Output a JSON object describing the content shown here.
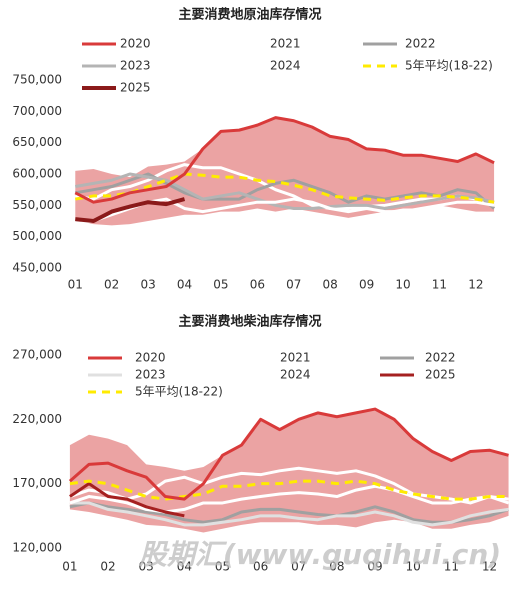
{
  "chart_data": [
    {
      "type": "line",
      "title": "主要消费地原油库存情况",
      "x": [
        1,
        1.5,
        2,
        2.5,
        3,
        3.5,
        4,
        4.5,
        5,
        5.5,
        6,
        6.5,
        7,
        7.5,
        8,
        8.5,
        9,
        9.5,
        10,
        10.5,
        11,
        11.5,
        12,
        12.5
      ],
      "xlim": [
        0.8,
        12.8
      ],
      "xticks": [
        {
          "value": 1,
          "label": "01"
        },
        {
          "value": 2,
          "label": "02"
        },
        {
          "value": 3,
          "label": "03"
        },
        {
          "value": 4,
          "label": "04"
        },
        {
          "value": 5,
          "label": "05"
        },
        {
          "value": 6,
          "label": "06"
        },
        {
          "value": 7,
          "label": "07"
        },
        {
          "value": 8,
          "label": "08"
        },
        {
          "value": 9,
          "label": "09"
        },
        {
          "value": 10,
          "label": "10"
        },
        {
          "value": 11,
          "label": "11"
        },
        {
          "value": 12,
          "label": "12"
        }
      ],
      "ylim": [
        450000,
        750000
      ],
      "yticks": [
        {
          "value": 450000,
          "label": "450,000"
        },
        {
          "value": 500000,
          "label": "500,000"
        },
        {
          "value": 550000,
          "label": "550,000"
        },
        {
          "value": 600000,
          "label": "600,000"
        },
        {
          "value": 650000,
          "label": "650,000"
        },
        {
          "value": 700000,
          "label": "700,000"
        },
        {
          "value": 750000,
          "label": "750,000"
        }
      ],
      "band": {
        "color": "#eba3a3",
        "upper": [
          605000,
          608000,
          600000,
          595000,
          612000,
          615000,
          620000,
          640000,
          668000,
          670000,
          678000,
          690000,
          685000,
          675000,
          660000,
          655000,
          640000,
          638000,
          630000,
          630000,
          625000,
          620000,
          632000,
          618000
        ],
        "lower": [
          525000,
          520000,
          518000,
          520000,
          525000,
          530000,
          535000,
          535000,
          540000,
          540000,
          545000,
          540000,
          545000,
          540000,
          535000,
          530000,
          535000,
          540000,
          545000,
          545000,
          550000,
          545000,
          540000,
          540000
        ]
      },
      "series": [
        {
          "name": "2020",
          "color": "#d93a3a",
          "line_width": 3,
          "values": [
            570000,
            555000,
            560000,
            570000,
            575000,
            580000,
            600000,
            640000,
            668000,
            670000,
            678000,
            690000,
            685000,
            675000,
            660000,
            655000,
            640000,
            638000,
            630000,
            630000,
            625000,
            620000,
            632000,
            618000
          ]
        },
        {
          "name": "2021",
          "color": "#ffffff",
          "line_width": 3,
          "values": [
            565000,
            560000,
            575000,
            580000,
            590000,
            605000,
            615000,
            610000,
            610000,
            600000,
            590000,
            575000,
            565000,
            550000,
            545000,
            545000,
            548000,
            550000,
            555000,
            560000,
            560000,
            565000,
            560000,
            555000
          ]
        },
        {
          "name": "2022",
          "color": "#a0a0a0",
          "line_width": 3,
          "values": [
            570000,
            575000,
            580000,
            590000,
            600000,
            585000,
            570000,
            560000,
            560000,
            560000,
            575000,
            585000,
            590000,
            580000,
            570000,
            555000,
            565000,
            560000,
            565000,
            570000,
            565000,
            575000,
            570000,
            545000
          ]
        },
        {
          "name": "2023",
          "color": "#b4b4b4",
          "line_width": 3,
          "values": [
            580000,
            585000,
            590000,
            600000,
            595000,
            590000,
            575000,
            560000,
            565000,
            570000,
            560000,
            550000,
            545000,
            545000,
            548000,
            550000,
            550000,
            545000,
            550000,
            555000,
            560000,
            565000,
            562000,
            555000
          ]
        },
        {
          "name": "2024",
          "color": "#ffffff",
          "line_width": 3,
          "values": [
            520000,
            525000,
            535000,
            545000,
            555000,
            560000,
            545000,
            540000,
            545000,
            550000,
            555000,
            555000,
            560000,
            555000,
            545000,
            540000,
            545000,
            540000,
            540000,
            545000,
            550000,
            555000,
            555000,
            550000
          ]
        },
        {
          "name": "5年平均(18-22)",
          "color": "#ffeb00",
          "line_width": 3,
          "dashed": true,
          "values": [
            560000,
            565000,
            565000,
            570000,
            580000,
            590000,
            600000,
            598000,
            595000,
            595000,
            590000,
            588000,
            582000,
            575000,
            565000,
            562000,
            560000,
            558000,
            562000,
            565000,
            565000,
            563000,
            560000,
            555000
          ]
        },
        {
          "name": "2025",
          "color": "#8b1a1a",
          "line_width": 4,
          "values": [
            528000,
            525000,
            540000,
            548000,
            555000,
            552000,
            560000,
            null,
            null,
            null,
            null,
            null,
            null,
            null,
            null,
            null,
            null,
            null,
            null,
            null,
            null,
            null,
            null,
            null
          ]
        }
      ]
    },
    {
      "type": "line",
      "title": "主要消费地柴油库存情况",
      "x": [
        1,
        1.5,
        2,
        2.5,
        3,
        3.5,
        4,
        4.5,
        5,
        5.5,
        6,
        6.5,
        7,
        7.5,
        8,
        8.5,
        9,
        9.5,
        10,
        10.5,
        11,
        11.5,
        12,
        12.5
      ],
      "xlim": [
        0.95,
        12.8
      ],
      "xticks": [
        {
          "value": 1,
          "label": "01"
        },
        {
          "value": 2,
          "label": "02"
        },
        {
          "value": 3,
          "label": "03"
        },
        {
          "value": 4,
          "label": "04"
        },
        {
          "value": 5,
          "label": "05"
        },
        {
          "value": 6,
          "label": "06"
        },
        {
          "value": 7,
          "label": "07"
        },
        {
          "value": 8,
          "label": "08"
        },
        {
          "value": 9,
          "label": "09"
        },
        {
          "value": 10,
          "label": "10"
        },
        {
          "value": 11,
          "label": "11"
        },
        {
          "value": 12,
          "label": "12"
        }
      ],
      "ylim": [
        120000,
        270000
      ],
      "yticks": [
        {
          "value": 120000,
          "label": "120,000"
        },
        {
          "value": 170000,
          "label": "170,000"
        },
        {
          "value": 220000,
          "label": "220,000"
        },
        {
          "value": 270000,
          "label": "270,000"
        }
      ],
      "band": {
        "color": "#eba3a3",
        "upper": [
          200000,
          208000,
          205000,
          200000,
          185000,
          183000,
          180000,
          183000,
          192000,
          200000,
          220000,
          212000,
          220000,
          225000,
          222000,
          225000,
          228000,
          220000,
          205000,
          195000,
          188000,
          195000,
          196000,
          192000
        ],
        "lower": [
          150000,
          148000,
          145000,
          142000,
          138000,
          137000,
          135000,
          132000,
          135000,
          138000,
          140000,
          140000,
          140000,
          138000,
          138000,
          136000,
          140000,
          142000,
          140000,
          135000,
          135000,
          138000,
          140000,
          145000
        ]
      },
      "series": [
        {
          "name": "2020",
          "color": "#d93a3a",
          "line_width": 3,
          "values": [
            172000,
            185000,
            186000,
            180000,
            175000,
            160000,
            158000,
            170000,
            192000,
            200000,
            220000,
            212000,
            220000,
            225000,
            222000,
            225000,
            228000,
            220000,
            205000,
            195000,
            188000,
            195000,
            196000,
            192000
          ]
        },
        {
          "name": "2021",
          "color": "#ffffff",
          "line_width": 3,
          "values": [
            160000,
            165000,
            163000,
            158000,
            162000,
            172000,
            175000,
            170000,
            175000,
            178000,
            177000,
            180000,
            182000,
            180000,
            178000,
            180000,
            176000,
            170000,
            162000,
            160000,
            158000,
            155000,
            160000,
            158000
          ]
        },
        {
          "name": "2022",
          "color": "#a0a0a0",
          "line_width": 3,
          "values": [
            152000,
            155000,
            152000,
            150000,
            148000,
            146000,
            142000,
            140000,
            142000,
            148000,
            150000,
            150000,
            148000,
            146000,
            145000,
            148000,
            152000,
            148000,
            142000,
            140000,
            140000,
            142000,
            145000,
            150000
          ]
        },
        {
          "name": "2023",
          "color": "#e0e0e0",
          "line_width": 3,
          "values": [
            155000,
            155000,
            150000,
            148000,
            145000,
            142000,
            138000,
            138000,
            140000,
            142000,
            145000,
            145000,
            143000,
            142000,
            145000,
            145000,
            148000,
            145000,
            140000,
            138000,
            140000,
            145000,
            148000,
            150000
          ]
        },
        {
          "name": "2024",
          "color": "#ffffff",
          "line_width": 3,
          "values": [
            155000,
            160000,
            158000,
            155000,
            150000,
            148000,
            150000,
            155000,
            155000,
            158000,
            160000,
            162000,
            163000,
            162000,
            160000,
            165000,
            168000,
            165000,
            160000,
            155000,
            155000,
            158000,
            160000,
            155000
          ]
        },
        {
          "name": "2025",
          "color": "#a52020",
          "line_width": 3,
          "values": [
            160000,
            170000,
            160000,
            158000,
            152000,
            148000,
            145000,
            null,
            null,
            null,
            null,
            null,
            null,
            null,
            null,
            null,
            null,
            null,
            null,
            null,
            null,
            null,
            null,
            null
          ]
        },
        {
          "name": "5年平均(18-22)",
          "color": "#ffeb00",
          "line_width": 3,
          "dashed": true,
          "values": [
            170000,
            172000,
            170000,
            165000,
            160000,
            158000,
            160000,
            162000,
            168000,
            168000,
            170000,
            170000,
            172000,
            172000,
            170000,
            172000,
            170000,
            165000,
            162000,
            160000,
            158000,
            158000,
            160000,
            160000
          ]
        }
      ]
    }
  ],
  "watermark": "股期汇(www.guqihui.cn)"
}
